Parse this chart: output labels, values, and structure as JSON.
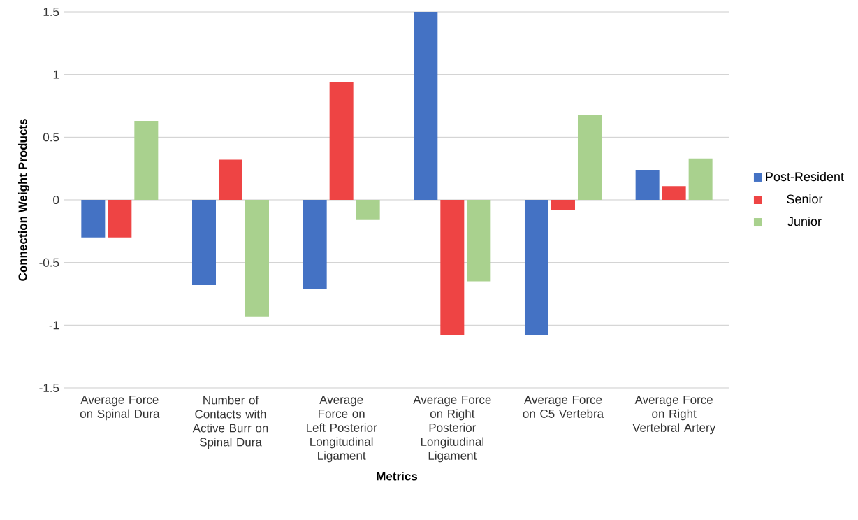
{
  "chart_data": {
    "type": "bar",
    "xlabel": "Metrics",
    "ylabel": "Connection Weight Products",
    "categories": [
      "Average Force on Spinal Dura",
      "Number of Contacts with Active Burr on Spinal Dura",
      "Average Force on Left Posterior Longitudinal Ligament",
      "Average Force on Right Posterior Longitudinal Ligament",
      "Average Force on C5 Vertebra",
      "Average Force on Right Vertebral Artery"
    ],
    "series": [
      {
        "name": "Post-Resident",
        "color": "#4472c4",
        "values": [
          -0.3,
          -0.68,
          -0.71,
          1.5,
          -1.08,
          0.24
        ]
      },
      {
        "name": "Senior",
        "color": "#ee4444",
        "values": [
          -0.3,
          0.32,
          0.94,
          -1.08,
          -0.08,
          0.11
        ]
      },
      {
        "name": "Junior",
        "color": "#a9d18e",
        "values": [
          0.63,
          -0.93,
          -0.16,
          -0.65,
          0.68,
          0.33
        ]
      }
    ],
    "ylim": [
      -1.5,
      1.5
    ],
    "yticks": [
      -1.5,
      -1,
      -0.5,
      0,
      0.5,
      1,
      1.5
    ],
    "grid": "y",
    "legend": "right"
  }
}
